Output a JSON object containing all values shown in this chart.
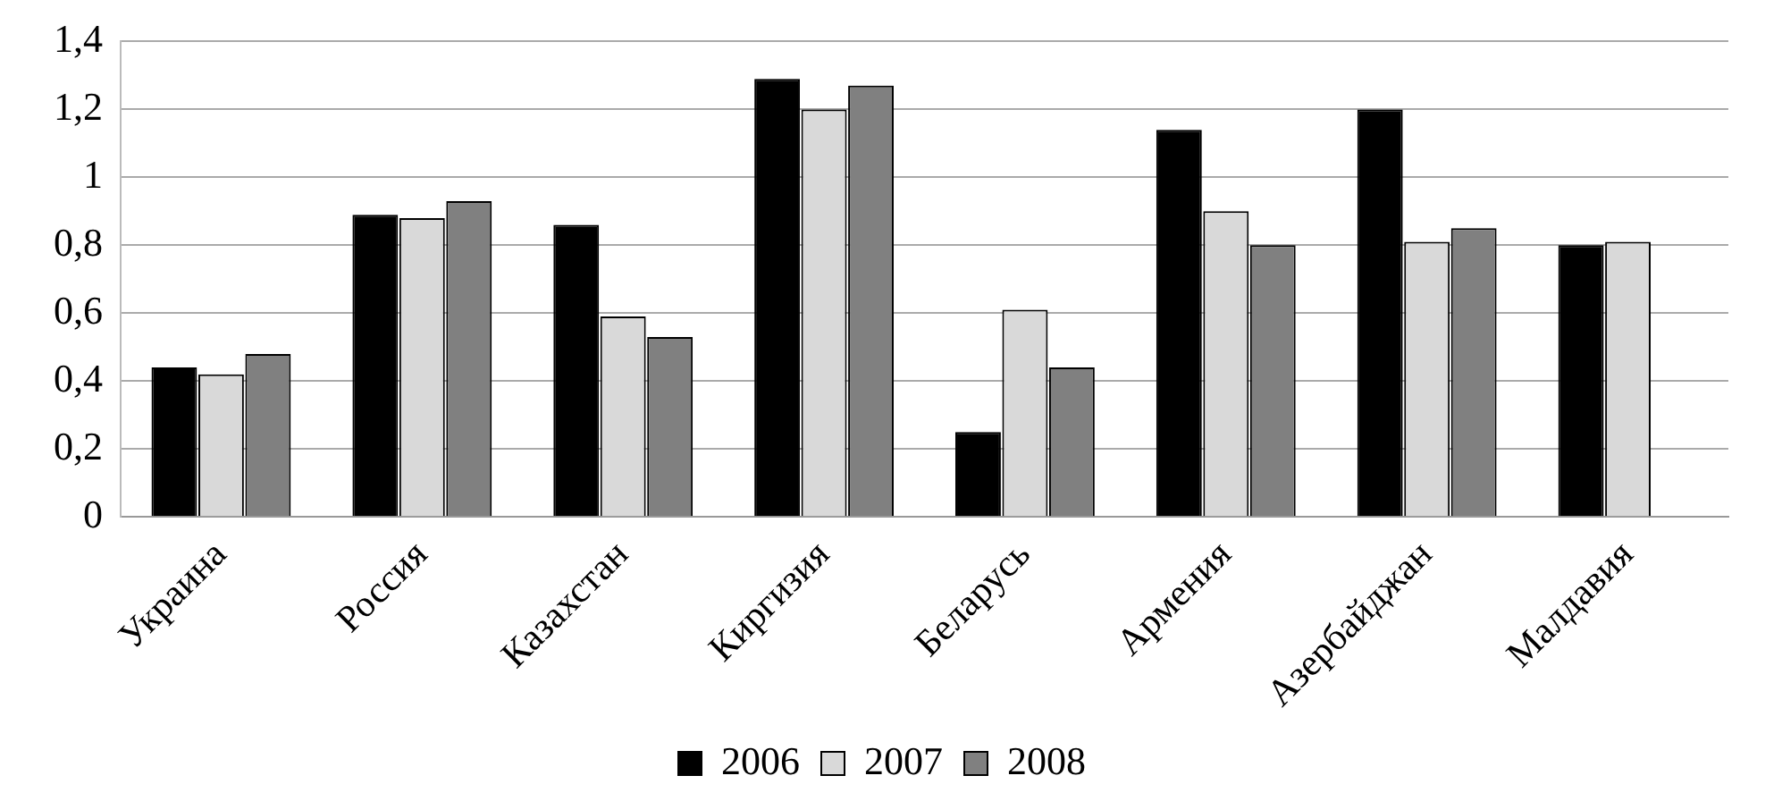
{
  "chart_data": {
    "type": "bar",
    "categories": [
      "Украина",
      "Россия",
      "Казахстан",
      "Киргизия",
      "Беларусь",
      "Армения",
      "Азербайджан",
      "Малдавия"
    ],
    "series": [
      {
        "name": "2006",
        "color": "#000000",
        "values": [
          0.44,
          0.89,
          0.86,
          1.29,
          0.25,
          1.14,
          1.2,
          0.8
        ]
      },
      {
        "name": "2007",
        "color": "#d9d9d9",
        "values": [
          0.42,
          0.88,
          0.59,
          1.2,
          0.61,
          0.9,
          0.81,
          0.81
        ]
      },
      {
        "name": "2008",
        "color": "#808080",
        "values": [
          0.48,
          0.93,
          0.53,
          1.27,
          0.44,
          0.8,
          0.85,
          null
        ]
      }
    ],
    "ylim": [
      0,
      1.4
    ],
    "yticks": [
      0,
      {
        "value": 0.2,
        "label": "0,2"
      },
      {
        "value": 0.4,
        "label": "0,4"
      },
      {
        "value": 0.6,
        "label": "0,6"
      },
      {
        "value": 0.8,
        "label": "0,8"
      },
      1,
      {
        "value": 1.2,
        "label": "1,2"
      },
      {
        "value": 1.4,
        "label": "1,4"
      }
    ],
    "grid": "y",
    "legend": "bottom"
  }
}
